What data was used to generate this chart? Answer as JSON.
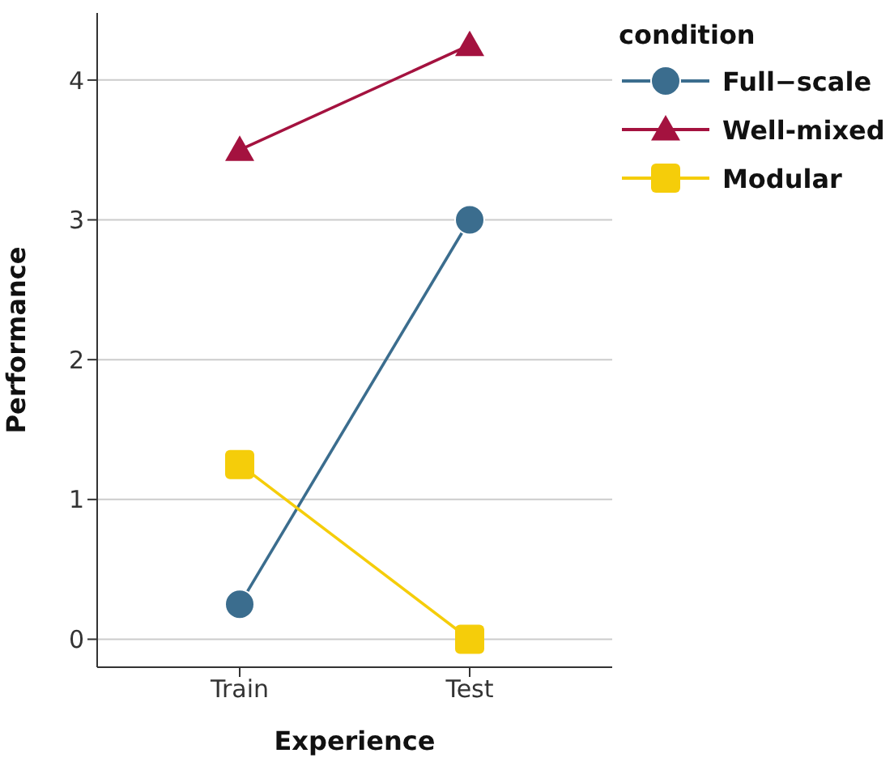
{
  "chart_data": {
    "type": "line",
    "xlabel": "Experience",
    "ylabel": "Performance",
    "legend_title": "condition",
    "categories": [
      "Train",
      "Test"
    ],
    "series": [
      {
        "name": "Full−scale",
        "color": "#3b6d8e",
        "values": [
          0.25,
          3.0
        ],
        "marker": "circle"
      },
      {
        "name": "Well-mixed",
        "color": "#a4123f",
        "values": [
          3.5,
          4.25
        ],
        "marker": "triangle"
      },
      {
        "name": "Modular",
        "color": "#f5cd0a",
        "values": [
          1.25,
          0
        ],
        "marker": "square"
      }
    ],
    "ylim": [
      -0.2,
      4.48
    ],
    "yticks": [
      0,
      1,
      2,
      3,
      4
    ],
    "grid": "y",
    "legend": "right"
  }
}
